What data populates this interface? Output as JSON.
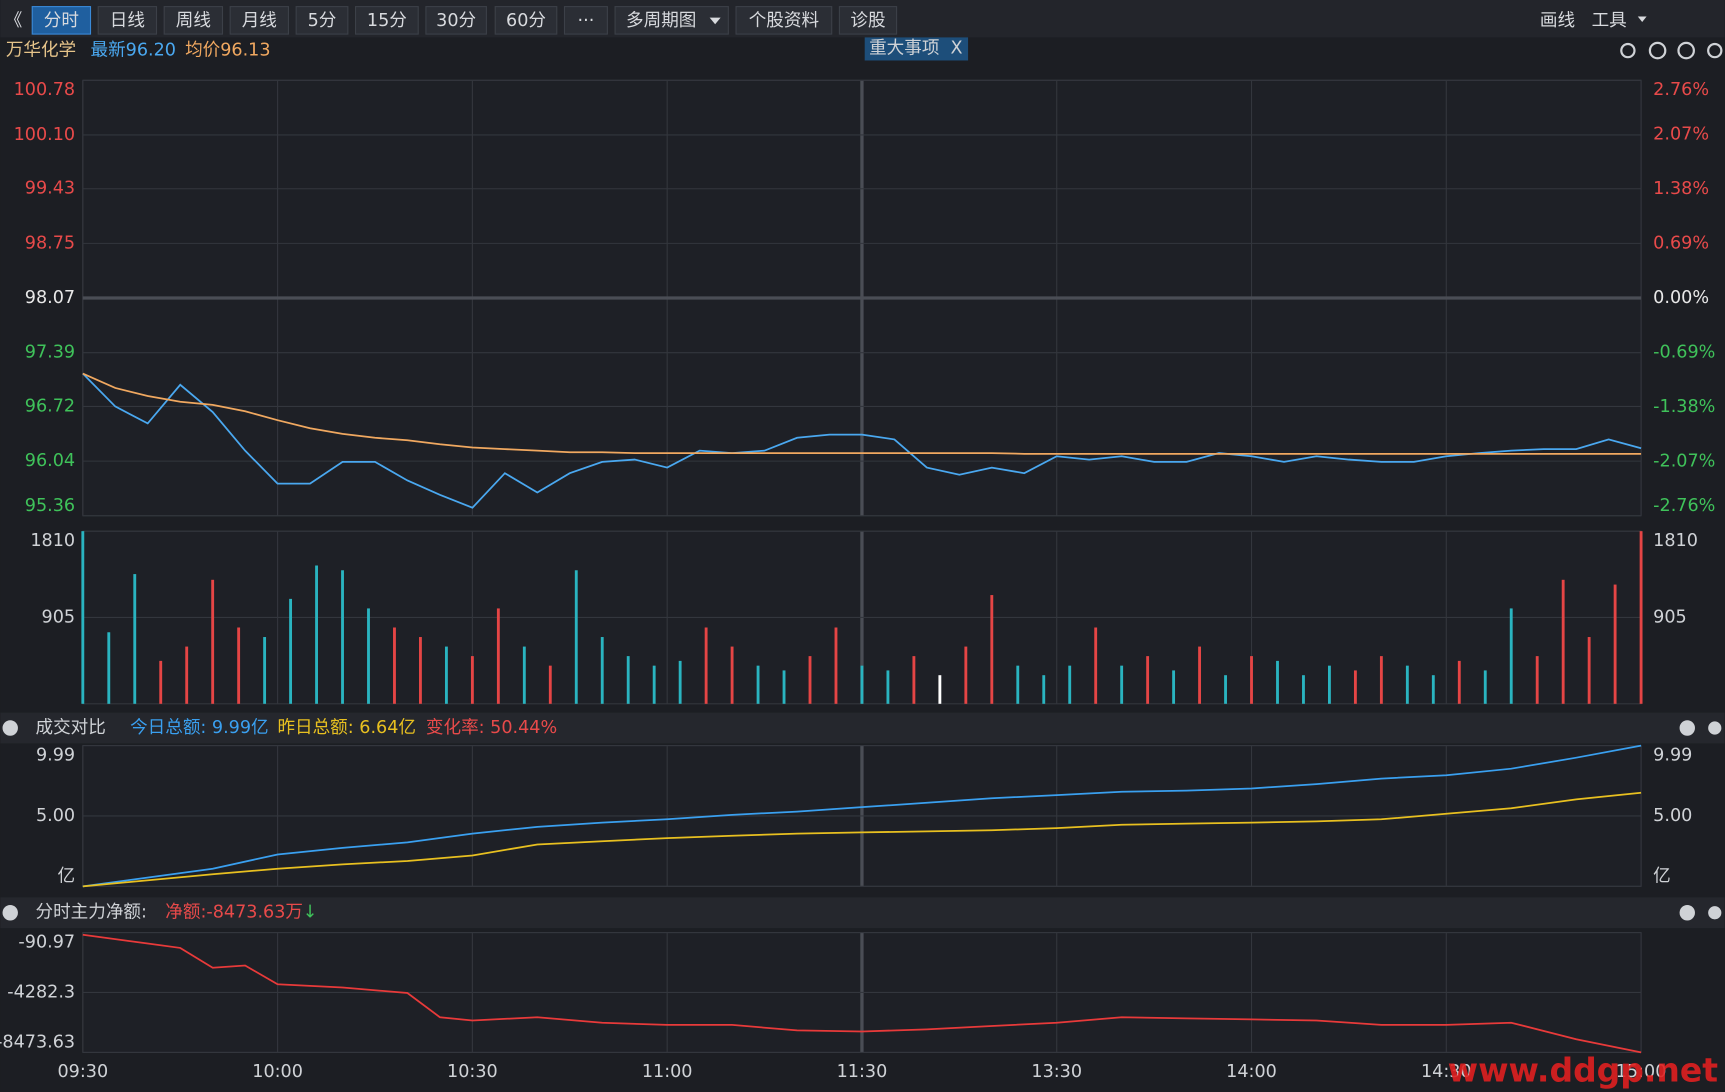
{
  "toolbar": {
    "buttons": [
      "《",
      "分时",
      "日线",
      "周线",
      "月线",
      "5分",
      "15分",
      "30分",
      "60分",
      "···",
      "多周期图",
      "个股资料",
      "诊股"
    ],
    "right": [
      "画线",
      "工具"
    ]
  },
  "header": {
    "stock": "万华化学",
    "latest": "最新96.20",
    "avg": "均价96.13",
    "event": "重大事项",
    "close": "X"
  },
  "panel2_header": {
    "title": "成交对比",
    "today": "今日总额: 9.99亿",
    "yesterday": "昨日总额: 6.64亿",
    "change": "变化率: 50.44%"
  },
  "panel3_header": {
    "title": "分时主力净额:",
    "net": "净额:-8473.63万",
    "arrow": "↓"
  },
  "watermark": "www.ddgp.net",
  "chart_data": [
    {
      "type": "line",
      "xlim": [
        0,
        240
      ],
      "ylim": [
        95.36,
        100.78
      ],
      "yticks": [
        95.36,
        96.04,
        96.72,
        97.39,
        98.07,
        98.75,
        99.43,
        {
          "value": 100.1,
          "label": "100.10"
        },
        100.78
      ],
      "y2lim": [
        -2.76,
        2.76
      ],
      "y2ticks": [
        {
          "value": -2.76,
          "label": "-2.76%"
        },
        {
          "value": -2.07,
          "label": "-2.07%"
        },
        {
          "value": -1.38,
          "label": "-1.38%"
        },
        {
          "value": -0.69,
          "label": "-0.69%"
        },
        {
          "value": 0,
          "label": "0.00%"
        },
        {
          "value": 0.69,
          "label": "0.69%"
        },
        {
          "value": 1.38,
          "label": "1.38%"
        },
        {
          "value": 2.07,
          "label": "2.07%"
        },
        {
          "value": 2.76,
          "label": "2.76%"
        }
      ],
      "grid": true,
      "x": [
        0,
        5,
        10,
        15,
        20,
        25,
        30,
        35,
        40,
        45,
        50,
        55,
        60,
        65,
        70,
        75,
        80,
        85,
        90,
        95,
        100,
        105,
        110,
        115,
        120,
        125,
        130,
        135,
        140,
        145,
        150,
        155,
        160,
        165,
        170,
        175,
        180,
        185,
        190,
        195,
        200,
        205,
        210,
        215,
        220,
        225,
        230,
        235,
        240
      ],
      "series": [
        {
          "color": "#4aa8f0",
          "values": [
            97.13,
            96.72,
            96.51,
            96.99,
            96.65,
            96.17,
            95.76,
            95.76,
            96.03,
            96.03,
            95.8,
            95.62,
            95.46,
            95.89,
            95.65,
            95.89,
            96.03,
            96.06,
            95.96,
            96.17,
            96.14,
            96.17,
            96.33,
            96.37,
            96.37,
            96.31,
            95.96,
            95.87,
            95.96,
            95.89,
            96.1,
            96.06,
            96.1,
            96.03,
            96.03,
            96.14,
            96.1,
            96.03,
            96.1,
            96.06,
            96.03,
            96.03,
            96.1,
            96.14,
            96.17,
            96.19,
            96.19,
            96.31,
            96.2
          ]
        },
        {
          "color": "#f0a860",
          "values": [
            97.13,
            96.95,
            96.85,
            96.78,
            96.74,
            96.66,
            96.55,
            96.45,
            96.38,
            96.33,
            96.3,
            96.25,
            96.21,
            96.19,
            96.17,
            96.15,
            96.15,
            96.14,
            96.14,
            96.14,
            96.14,
            96.14,
            96.14,
            96.14,
            96.14,
            96.14,
            96.14,
            96.14,
            96.14,
            96.13,
            96.13,
            96.13,
            96.13,
            96.13,
            96.13,
            96.13,
            96.13,
            96.13,
            96.13,
            96.13,
            96.13,
            96.13,
            96.13,
            96.13,
            96.13,
            96.13,
            96.13,
            96.13,
            96.13
          ]
        }
      ]
    },
    {
      "type": "bar",
      "xlim": [
        0,
        240
      ],
      "ylim": [
        0,
        1810
      ],
      "yticks": [
        905,
        1810
      ],
      "grid": true,
      "x": [
        0,
        4,
        8,
        12,
        16,
        20,
        24,
        28,
        32,
        36,
        40,
        44,
        48,
        52,
        56,
        60,
        64,
        68,
        72,
        76,
        80,
        84,
        88,
        92,
        96,
        100,
        104,
        108,
        112,
        116,
        120,
        124,
        128,
        132,
        136,
        140,
        144,
        148,
        152,
        156,
        160,
        164,
        168,
        172,
        176,
        180,
        184,
        188,
        192,
        196,
        200,
        204,
        208,
        212,
        216,
        220,
        224,
        228,
        232,
        236,
        240
      ],
      "values": [
        1810,
        750,
        1360,
        450,
        600,
        1300,
        800,
        700,
        1100,
        1450,
        1400,
        1000,
        800,
        700,
        600,
        500,
        1000,
        600,
        400,
        1400,
        700,
        500,
        400,
        450,
        800,
        600,
        400,
        350,
        500,
        800,
        400,
        350,
        500,
        300,
        600,
        1140,
        400,
        300,
        400,
        800,
        400,
        500,
        350,
        600,
        300,
        500,
        450,
        300,
        400,
        350,
        500,
        400,
        300,
        450,
        350,
        1000,
        500,
        1300,
        700,
        1250,
        1810
      ],
      "bar_colors": [
        "#2ab4c0",
        "#2ab4c0",
        "#2ab4c0",
        "#e54545",
        "#e54545",
        "#e54545",
        "#e54545",
        "#2ab4c0",
        "#2ab4c0",
        "#2ab4c0",
        "#2ab4c0",
        "#2ab4c0",
        "#e54545",
        "#e54545",
        "#2ab4c0",
        "#e54545",
        "#e54545",
        "#2ab4c0",
        "#e54545",
        "#2ab4c0",
        "#2ab4c0",
        "#2ab4c0",
        "#2ab4c0",
        "#2ab4c0",
        "#e54545",
        "#e54545",
        "#2ab4c0",
        "#2ab4c0",
        "#e54545",
        "#e54545",
        "#2ab4c0",
        "#2ab4c0",
        "#e54545",
        "#ffffff",
        "#e54545",
        "#e54545",
        "#2ab4c0",
        "#2ab4c0",
        "#2ab4c0",
        "#e54545",
        "#2ab4c0",
        "#e54545",
        "#2ab4c0",
        "#e54545",
        "#2ab4c0",
        "#e54545",
        "#2ab4c0",
        "#2ab4c0",
        "#2ab4c0",
        "#e54545",
        "#e54545",
        "#2ab4c0",
        "#2ab4c0",
        "#e54545",
        "#2ab4c0",
        "#2ab4c0",
        "#e54545",
        "#e54545",
        "#e54545",
        "#e54545",
        "#e54545"
      ]
    },
    {
      "type": "line",
      "xlim": [
        0,
        240
      ],
      "ylim": [
        0,
        9.99
      ],
      "yticks": [
        {
          "value": 0,
          "label": "亿"
        },
        {
          "value": 5,
          "label": "5.00"
        },
        9.99
      ],
      "grid": true,
      "x": [
        0,
        20,
        30,
        40,
        50,
        60,
        70,
        80,
        90,
        100,
        110,
        120,
        130,
        140,
        150,
        160,
        170,
        180,
        190,
        200,
        210,
        220,
        230,
        240
      ],
      "series": [
        {
          "color": "#3aa0f0",
          "values": [
            0,
            1.25,
            2.26,
            2.73,
            3.12,
            3.75,
            4.22,
            4.53,
            4.76,
            5.07,
            5.31,
            5.62,
            5.93,
            6.25,
            6.48,
            6.71,
            6.79,
            6.95,
            7.26,
            7.65,
            7.88,
            8.35,
            9.13,
            9.99
          ]
        },
        {
          "color": "#e8c020",
          "values": [
            0,
            0.86,
            1.25,
            1.56,
            1.8,
            2.19,
            2.97,
            3.2,
            3.43,
            3.59,
            3.75,
            3.83,
            3.9,
            3.98,
            4.14,
            4.37,
            4.45,
            4.53,
            4.61,
            4.76,
            5.15,
            5.54,
            6.17,
            6.64
          ]
        }
      ]
    },
    {
      "type": "line",
      "xlim": [
        0,
        240
      ],
      "ylim": [
        -8473.63,
        -90.97
      ],
      "yticks": [
        -8473.63,
        -4282.3,
        -90.97
      ],
      "grid": true,
      "xticks": [
        {
          "value": 0,
          "label": "09:30"
        },
        {
          "value": 30,
          "label": "10:00"
        },
        {
          "value": 60,
          "label": "10:30"
        },
        {
          "value": 90,
          "label": "11:00"
        },
        {
          "value": 120,
          "label": "11:30"
        },
        {
          "value": 150,
          "label": "13:30"
        },
        {
          "value": 180,
          "label": "14:00"
        },
        {
          "value": 210,
          "label": "14:30"
        },
        {
          "value": 240,
          "label": "15:00"
        }
      ],
      "x": [
        0,
        10,
        15,
        20,
        25,
        30,
        40,
        50,
        55,
        60,
        70,
        80,
        90,
        100,
        110,
        120,
        130,
        140,
        150,
        160,
        170,
        180,
        190,
        200,
        210,
        220,
        230,
        240
      ],
      "series": [
        {
          "color": "#e83a3a",
          "values": [
            -245,
            -860,
            -1168,
            -2552,
            -2398,
            -3705,
            -3936,
            -4321,
            -6012,
            -6243,
            -6012,
            -6397,
            -6551,
            -6551,
            -6935,
            -7012,
            -6858,
            -6627,
            -6397,
            -6012,
            -6089,
            -6166,
            -6243,
            -6551,
            -6551,
            -6397,
            -7550,
            -8473.63
          ]
        }
      ]
    }
  ]
}
